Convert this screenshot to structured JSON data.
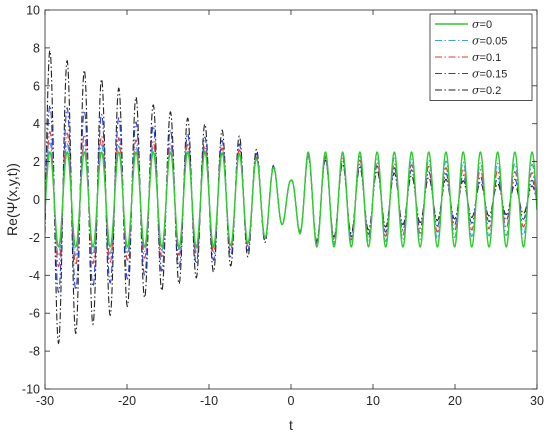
{
  "chart_data": {
    "type": "line",
    "title": "",
    "xlabel": "t",
    "ylabel": "Re(Ψ(x,y,t))",
    "xlim": [
      -30,
      30
    ],
    "ylim": [
      -10,
      10
    ],
    "xticks": [
      -30,
      -20,
      -10,
      0,
      10,
      20,
      30
    ],
    "yticks": [
      -10,
      -8,
      -6,
      -4,
      -2,
      0,
      2,
      4,
      6,
      8,
      10
    ],
    "x_tick_labels": [
      "-30",
      "-20",
      "-10",
      "0",
      "10",
      "20",
      "30"
    ],
    "y_tick_labels": [
      "-10",
      "-8",
      "-6",
      "-4",
      "-2",
      "0",
      "2",
      "4",
      "6",
      "8",
      "10"
    ],
    "grid": false,
    "legend_position": "top-right",
    "carrier_period": 2.1,
    "series": [
      {
        "name": "=0",
        "sigma": 0,
        "color": "#2ecc2e",
        "dash": "solid",
        "envelope": {
          "t": [
            -30,
            -26,
            -22,
            -18,
            -14,
            -10,
            -6,
            -3,
            -1,
            0,
            2,
            6,
            10,
            14,
            18,
            22,
            26,
            30
          ],
          "amplitude": [
            2.5,
            2.5,
            2.5,
            2.5,
            2.5,
            2.5,
            2.4,
            2.0,
            1.3,
            1.0,
            2.5,
            2.5,
            2.5,
            2.5,
            2.5,
            2.5,
            2.5,
            2.5
          ]
        }
      },
      {
        "name": "=0.05",
        "sigma": 0.05,
        "color": "#3fa0e0",
        "dash": "dashdot",
        "envelope": {
          "t": [
            -30,
            -26,
            -22,
            -18,
            -14,
            -10,
            -6,
            -3,
            -1,
            0,
            2,
            6,
            10,
            14,
            18,
            22,
            26,
            30
          ],
          "amplitude": [
            3.0,
            2.95,
            2.85,
            2.75,
            2.65,
            2.55,
            2.45,
            2.0,
            1.3,
            1.0,
            2.45,
            2.35,
            2.25,
            2.15,
            2.05,
            1.95,
            1.9,
            1.85
          ]
        }
      },
      {
        "name": "=0.1",
        "sigma": 0.1,
        "color": "#e03a3a",
        "dash": "dashdot",
        "envelope": {
          "t": [
            -30,
            -26,
            -22,
            -18,
            -14,
            -10,
            -6,
            -3,
            -1,
            0,
            2,
            6,
            10,
            14,
            18,
            22,
            26,
            30
          ],
          "amplitude": [
            3.6,
            3.45,
            3.3,
            3.1,
            2.95,
            2.8,
            2.6,
            2.0,
            1.3,
            1.0,
            2.4,
            2.2,
            2.0,
            1.85,
            1.7,
            1.6,
            1.5,
            1.4
          ]
        }
      },
      {
        "name": "=0.15",
        "sigma": 0.15,
        "color": "#2b3fcc",
        "dash": "dashdot",
        "envelope": {
          "t": [
            -30,
            -26,
            -22,
            -18,
            -14,
            -10,
            -6,
            -3,
            -1,
            0,
            2,
            6,
            10,
            14,
            18,
            22,
            26,
            30
          ],
          "amplitude": [
            5.0,
            4.75,
            4.4,
            4.0,
            3.6,
            3.25,
            2.9,
            2.1,
            1.3,
            1.0,
            2.35,
            2.05,
            1.8,
            1.6,
            1.4,
            1.25,
            1.1,
            1.0
          ]
        }
      },
      {
        "name": "=0.2",
        "sigma": 0.2,
        "color": "#222222",
        "dash": "dashdot",
        "envelope": {
          "t": [
            -30,
            -26,
            -22,
            -18,
            -14,
            -10,
            -6,
            -3,
            -1,
            0,
            2,
            6,
            10,
            14,
            18,
            22,
            26,
            30
          ],
          "amplitude": [
            8.0,
            7.0,
            6.1,
            5.2,
            4.5,
            3.9,
            3.3,
            2.2,
            1.3,
            1.0,
            2.3,
            1.9,
            1.55,
            1.3,
            1.1,
            0.95,
            0.8,
            0.7
          ]
        }
      }
    ]
  },
  "legend_symbol": "σ"
}
